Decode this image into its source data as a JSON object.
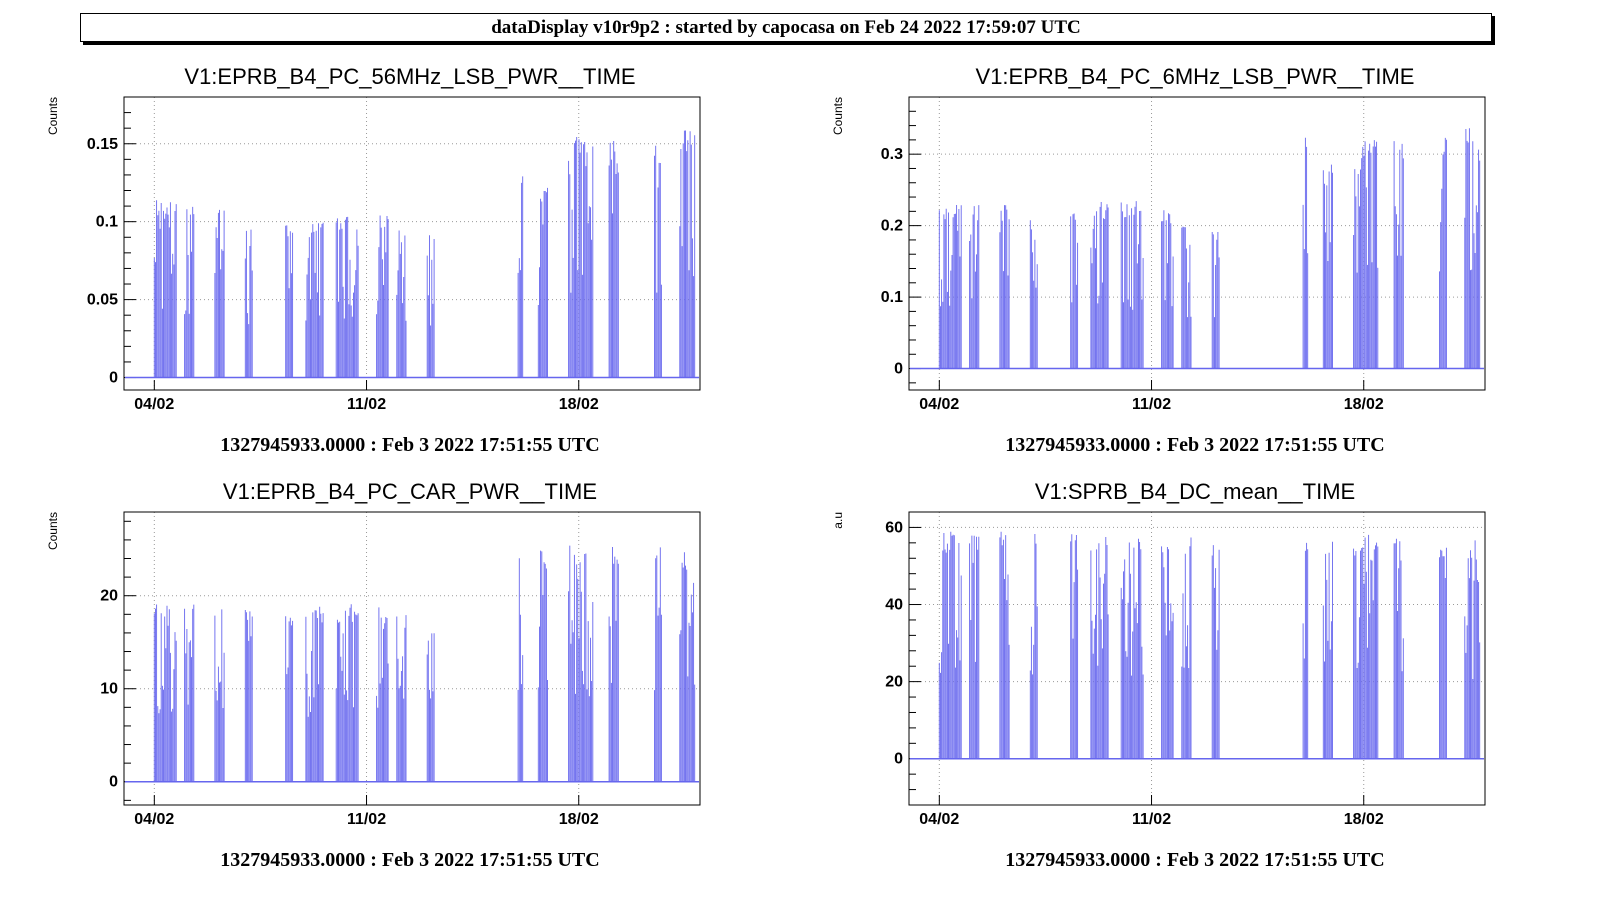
{
  "header": {
    "title": "dataDisplay v10r9p2 : started by capocasa on Feb 24 2022 17:59:07 UTC"
  },
  "colors": {
    "series": "#6666ee",
    "grid": "#9a9a9a",
    "axis": "#000000"
  },
  "chart_data": [
    {
      "type": "bar",
      "title": "V1:EPRB_B4_PC_56MHz_LSB_PWR__TIME",
      "ylabel": "Counts",
      "footer": "1327945933.0000 : Feb  3 2022 17:51:55 UTC",
      "xlim": [
        "2022-02-03",
        "2022-02-22"
      ],
      "ylim": [
        -0.008,
        0.18
      ],
      "y_ticks": [
        0,
        0.05,
        0.1,
        0.15
      ],
      "x_ticks": [
        {
          "date": "2022-02-04",
          "label": "04/02"
        },
        {
          "date": "2022-02-11",
          "label": "11/02"
        },
        {
          "date": "2022-02-18",
          "label": "18/02"
        }
      ],
      "grid": true,
      "bursts": [
        {
          "start": "2022-02-04",
          "end": "2022-02-04 18:00",
          "peak": 0.115
        },
        {
          "start": "2022-02-05",
          "end": "2022-02-05 08:00",
          "peak": 0.115
        },
        {
          "start": "2022-02-06",
          "end": "2022-02-06 08:00",
          "peak": 0.113
        },
        {
          "start": "2022-02-07",
          "end": "2022-02-07 06:00",
          "peak": 0.097
        },
        {
          "start": "2022-02-08 08:00",
          "end": "2022-02-08 14:00",
          "peak": 0.1
        },
        {
          "start": "2022-02-09",
          "end": "2022-02-09 14:00",
          "peak": 0.103
        },
        {
          "start": "2022-02-10",
          "end": "2022-02-10 18:00",
          "peak": 0.105
        },
        {
          "start": "2022-02-11 08:00",
          "end": "2022-02-11 18:00",
          "peak": 0.105
        },
        {
          "start": "2022-02-12",
          "end": "2022-02-12 08:00",
          "peak": 0.095
        },
        {
          "start": "2022-02-13",
          "end": "2022-02-13 06:00",
          "peak": 0.095
        },
        {
          "start": "2022-02-16",
          "end": "2022-02-16 04:00",
          "peak": 0.14
        },
        {
          "start": "2022-02-16 16:00",
          "end": "2022-02-17",
          "peak": 0.125
        },
        {
          "start": "2022-02-17 16:00",
          "end": "2022-02-18 12:00",
          "peak": 0.155
        },
        {
          "start": "2022-02-19",
          "end": "2022-02-19 08:00",
          "peak": 0.155
        },
        {
          "start": "2022-02-20 12:00",
          "end": "2022-02-20 18:00",
          "peak": 0.155
        },
        {
          "start": "2022-02-21 08:00",
          "end": "2022-02-21 20:00",
          "peak": 0.16
        }
      ]
    },
    {
      "type": "bar",
      "title": "V1:EPRB_B4_PC_6MHz_LSB_PWR__TIME",
      "ylabel": "Counts",
      "footer": "1327945933.0000 : Feb  3 2022 17:51:55 UTC",
      "xlim": [
        "2022-02-03",
        "2022-02-22"
      ],
      "ylim": [
        -0.03,
        0.38
      ],
      "y_ticks": [
        0,
        0.1,
        0.2,
        0.3
      ],
      "x_ticks": [
        {
          "date": "2022-02-04",
          "label": "04/02"
        },
        {
          "date": "2022-02-11",
          "label": "11/02"
        },
        {
          "date": "2022-02-18",
          "label": "18/02"
        }
      ],
      "grid": true,
      "bursts": [
        {
          "start": "2022-02-04",
          "end": "2022-02-04 18:00",
          "peak": 0.235
        },
        {
          "start": "2022-02-05",
          "end": "2022-02-05 08:00",
          "peak": 0.23
        },
        {
          "start": "2022-02-06",
          "end": "2022-02-06 08:00",
          "peak": 0.23
        },
        {
          "start": "2022-02-07",
          "end": "2022-02-07 06:00",
          "peak": 0.21
        },
        {
          "start": "2022-02-08 08:00",
          "end": "2022-02-08 14:00",
          "peak": 0.22
        },
        {
          "start": "2022-02-09",
          "end": "2022-02-09 14:00",
          "peak": 0.235
        },
        {
          "start": "2022-02-10",
          "end": "2022-02-10 18:00",
          "peak": 0.235
        },
        {
          "start": "2022-02-11 08:00",
          "end": "2022-02-11 18:00",
          "peak": 0.225
        },
        {
          "start": "2022-02-12",
          "end": "2022-02-12 08:00",
          "peak": 0.205
        },
        {
          "start": "2022-02-13",
          "end": "2022-02-13 06:00",
          "peak": 0.205
        },
        {
          "start": "2022-02-16",
          "end": "2022-02-16 04:00",
          "peak": 0.325
        },
        {
          "start": "2022-02-16 16:00",
          "end": "2022-02-17",
          "peak": 0.29
        },
        {
          "start": "2022-02-17 16:00",
          "end": "2022-02-18 12:00",
          "peak": 0.325
        },
        {
          "start": "2022-02-19",
          "end": "2022-02-19 08:00",
          "peak": 0.325
        },
        {
          "start": "2022-02-20 12:00",
          "end": "2022-02-20 18:00",
          "peak": 0.325
        },
        {
          "start": "2022-02-21 08:00",
          "end": "2022-02-21 20:00",
          "peak": 0.34
        }
      ]
    },
    {
      "type": "bar",
      "title": "V1:EPRB_B4_PC_CAR_PWR__TIME",
      "ylabel": "Counts",
      "footer": "1327945933.0000 : Feb  3 2022 17:51:55 UTC",
      "xlim": [
        "2022-02-03",
        "2022-02-22"
      ],
      "ylim": [
        -2.5,
        29
      ],
      "y_ticks": [
        0,
        10,
        20
      ],
      "x_ticks": [
        {
          "date": "2022-02-04",
          "label": "04/02"
        },
        {
          "date": "2022-02-11",
          "label": "11/02"
        },
        {
          "date": "2022-02-18",
          "label": "18/02"
        }
      ],
      "grid": true,
      "bursts": [
        {
          "start": "2022-02-04",
          "end": "2022-02-04 18:00",
          "peak": 19.5
        },
        {
          "start": "2022-02-05",
          "end": "2022-02-05 08:00",
          "peak": 19.5
        },
        {
          "start": "2022-02-06",
          "end": "2022-02-06 08:00",
          "peak": 19.2
        },
        {
          "start": "2022-02-07",
          "end": "2022-02-07 06:00",
          "peak": 18.5
        },
        {
          "start": "2022-02-08 08:00",
          "end": "2022-02-08 14:00",
          "peak": 18.5
        },
        {
          "start": "2022-02-09",
          "end": "2022-02-09 14:00",
          "peak": 19
        },
        {
          "start": "2022-02-10",
          "end": "2022-02-10 18:00",
          "peak": 19.5
        },
        {
          "start": "2022-02-11 08:00",
          "end": "2022-02-11 18:00",
          "peak": 19
        },
        {
          "start": "2022-02-12",
          "end": "2022-02-12 08:00",
          "peak": 18
        },
        {
          "start": "2022-02-13",
          "end": "2022-02-13 06:00",
          "peak": 17.5
        },
        {
          "start": "2022-02-16",
          "end": "2022-02-16 04:00",
          "peak": 26
        },
        {
          "start": "2022-02-16 16:00",
          "end": "2022-02-17",
          "peak": 25
        },
        {
          "start": "2022-02-17 16:00",
          "end": "2022-02-18 12:00",
          "peak": 25.5
        },
        {
          "start": "2022-02-19",
          "end": "2022-02-19 08:00",
          "peak": 25.5
        },
        {
          "start": "2022-02-20 12:00",
          "end": "2022-02-20 18:00",
          "peak": 25.5
        },
        {
          "start": "2022-02-21 08:00",
          "end": "2022-02-21 20:00",
          "peak": 25
        }
      ]
    },
    {
      "type": "bar",
      "title": "V1:SPRB_B4_DC_mean__TIME",
      "ylabel": "a.u",
      "footer": "1327945933.0000 : Feb  3 2022 17:51:55 UTC",
      "xlim": [
        "2022-02-03",
        "2022-02-22"
      ],
      "ylim": [
        -12,
        64
      ],
      "y_ticks": [
        0,
        20,
        40,
        60
      ],
      "x_ticks": [
        {
          "date": "2022-02-04",
          "label": "04/02"
        },
        {
          "date": "2022-02-11",
          "label": "11/02"
        },
        {
          "date": "2022-02-18",
          "label": "18/02"
        }
      ],
      "grid": true,
      "bursts": [
        {
          "start": "2022-02-04",
          "end": "2022-02-04 18:00",
          "peak": 59
        },
        {
          "start": "2022-02-05",
          "end": "2022-02-05 08:00",
          "peak": 60
        },
        {
          "start": "2022-02-06",
          "end": "2022-02-06 08:00",
          "peak": 59
        },
        {
          "start": "2022-02-07",
          "end": "2022-02-07 06:00",
          "peak": 59
        },
        {
          "start": "2022-02-08 08:00",
          "end": "2022-02-08 14:00",
          "peak": 59
        },
        {
          "start": "2022-02-09",
          "end": "2022-02-09 14:00",
          "peak": 60
        },
        {
          "start": "2022-02-10",
          "end": "2022-02-10 18:00",
          "peak": 60
        },
        {
          "start": "2022-02-11 08:00",
          "end": "2022-02-11 18:00",
          "peak": 59
        },
        {
          "start": "2022-02-12",
          "end": "2022-02-12 08:00",
          "peak": 58
        },
        {
          "start": "2022-02-13",
          "end": "2022-02-13 06:00",
          "peak": 57
        },
        {
          "start": "2022-02-16",
          "end": "2022-02-16 04:00",
          "peak": 58
        },
        {
          "start": "2022-02-16 16:00",
          "end": "2022-02-17",
          "peak": 57
        },
        {
          "start": "2022-02-17 16:00",
          "end": "2022-02-18 12:00",
          "peak": 59
        },
        {
          "start": "2022-02-19",
          "end": "2022-02-19 08:00",
          "peak": 59
        },
        {
          "start": "2022-02-20 12:00",
          "end": "2022-02-20 18:00",
          "peak": 58
        },
        {
          "start": "2022-02-21 08:00",
          "end": "2022-02-21 20:00",
          "peak": 57
        }
      ]
    }
  ]
}
